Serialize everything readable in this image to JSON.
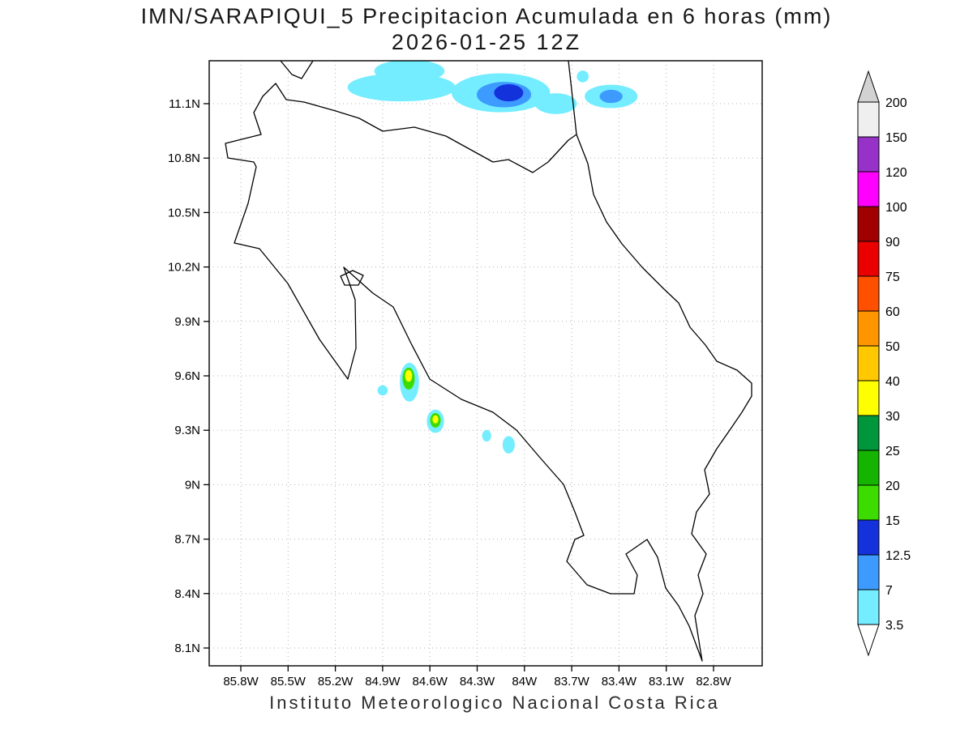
{
  "caption": "Instituto Meteorologico Nacional Costa Rica",
  "chart_data": {
    "type": "heatmap",
    "title": "IMN/SARAPIQUI_5 Precipitacion Acumulada en 6 horas (mm)",
    "subtitle": "2026-01-25 12Z",
    "units": "mm",
    "grid": "dotted",
    "x_axis": {
      "kind": "longitude",
      "tick_labels": [
        "85.8W",
        "85.5W",
        "85.2W",
        "84.9W",
        "84.6W",
        "84.3W",
        "84W",
        "83.7W",
        "83.4W",
        "83.1W",
        "82.8W"
      ]
    },
    "y_axis": {
      "kind": "latitude",
      "tick_labels": [
        "11.1N",
        "10.8N",
        "10.5N",
        "10.2N",
        "9.9N",
        "9.6N",
        "9.3N",
        "9N",
        "8.7N",
        "8.4N",
        "8.1N"
      ]
    },
    "colorbar": {
      "position": "right",
      "levels": [
        3.5,
        7,
        12.5,
        15,
        20,
        25,
        30,
        40,
        50,
        60,
        75,
        90,
        100,
        120,
        150,
        200
      ],
      "labels_top_to_bottom": [
        "200",
        "150",
        "120",
        "100",
        "90",
        "75",
        "60",
        "50",
        "40",
        "30",
        "25",
        "20",
        "15",
        "12.5",
        "7",
        "3.5"
      ],
      "segment_colors": [
        "#73EDFF",
        "#3D9BFF",
        "#1432DC",
        "#3CDC00",
        "#14B400",
        "#00963C",
        "#FFFF00",
        "#FFC800",
        "#FF9600",
        "#FF5000",
        "#EB0000",
        "#A00000",
        "#FF00FF",
        "#9632C8",
        "#EFEFEF"
      ],
      "under_color": "#FFFFFF",
      "over_color": "#D2D2D2"
    },
    "precip_cells": [
      {
        "lon_w": 84.78,
        "lat_n": 11.19,
        "rx_deg": 0.34,
        "ry_deg": 0.075,
        "level_mm": 3.5
      },
      {
        "lon_w": 84.73,
        "lat_n": 11.28,
        "rx_deg": 0.22,
        "ry_deg": 0.06,
        "level_mm": 3.5
      },
      {
        "lon_w": 84.15,
        "lat_n": 11.16,
        "rx_deg": 0.31,
        "ry_deg": 0.105,
        "level_mm": 3.5
      },
      {
        "lon_w": 83.8,
        "lat_n": 11.1,
        "rx_deg": 0.13,
        "ry_deg": 0.055,
        "level_mm": 3.5
      },
      {
        "lon_w": 84.13,
        "lat_n": 11.15,
        "rx_deg": 0.17,
        "ry_deg": 0.068,
        "level_mm": 7
      },
      {
        "lon_w": 84.1,
        "lat_n": 11.16,
        "rx_deg": 0.09,
        "ry_deg": 0.045,
        "level_mm": 12.5
      },
      {
        "lon_w": 83.45,
        "lat_n": 11.14,
        "rx_deg": 0.165,
        "ry_deg": 0.062,
        "level_mm": 3.5
      },
      {
        "lon_w": 83.45,
        "lat_n": 11.14,
        "rx_deg": 0.07,
        "ry_deg": 0.034,
        "level_mm": 7
      },
      {
        "lon_w": 83.63,
        "lat_n": 11.25,
        "rx_deg": 0.035,
        "ry_deg": 0.03,
        "level_mm": 3.5
      },
      {
        "lon_w": 84.73,
        "lat_n": 9.565,
        "rx_deg": 0.058,
        "ry_deg": 0.105,
        "level_mm": 3.5
      },
      {
        "lon_w": 84.735,
        "lat_n": 9.585,
        "rx_deg": 0.036,
        "ry_deg": 0.058,
        "level_mm": 15
      },
      {
        "lon_w": 84.735,
        "lat_n": 9.6,
        "rx_deg": 0.02,
        "ry_deg": 0.03,
        "level_mm": 30
      },
      {
        "lon_w": 84.9,
        "lat_n": 9.52,
        "rx_deg": 0.03,
        "ry_deg": 0.026,
        "level_mm": 3.5
      },
      {
        "lon_w": 84.565,
        "lat_n": 9.35,
        "rx_deg": 0.052,
        "ry_deg": 0.062,
        "level_mm": 3.5
      },
      {
        "lon_w": 84.565,
        "lat_n": 9.355,
        "rx_deg": 0.031,
        "ry_deg": 0.038,
        "level_mm": 15
      },
      {
        "lon_w": 84.565,
        "lat_n": 9.36,
        "rx_deg": 0.016,
        "ry_deg": 0.02,
        "level_mm": 30
      },
      {
        "lon_w": 84.24,
        "lat_n": 9.27,
        "rx_deg": 0.026,
        "ry_deg": 0.03,
        "level_mm": 3.5
      },
      {
        "lon_w": 84.1,
        "lat_n": 9.22,
        "rx_deg": 0.036,
        "ry_deg": 0.046,
        "level_mm": 3.5
      }
    ]
  }
}
